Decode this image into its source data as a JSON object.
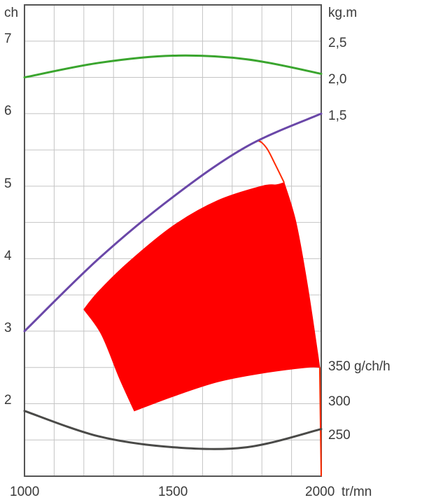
{
  "chart_data": {
    "type": "line",
    "x_unit": "tr/mn",
    "x": [
      1000,
      1250,
      1500,
      1750,
      2000
    ],
    "xlim": [
      1000,
      2000
    ],
    "x_ticks": [
      "1000",
      "1500",
      "2000"
    ],
    "left_axis": {
      "unit": "ch",
      "ylim": [
        1,
        7.5
      ],
      "ticks": [
        "2",
        "3",
        "4",
        "5",
        "6",
        "7"
      ]
    },
    "right_axis_torque": {
      "unit": "kg.m",
      "ticks": [
        "1,5",
        "2,0",
        "2,5"
      ]
    },
    "right_axis_consumption": {
      "ticks": [
        "250",
        "300",
        "350 g/ch/h"
      ]
    },
    "grid": true,
    "legend": "none",
    "series": [
      {
        "color": "#3aa52e",
        "values": [
          6.5,
          6.7,
          6.8,
          6.75,
          6.55
        ]
      },
      {
        "color": "#6a47a8",
        "values": [
          3.0,
          4.0,
          4.85,
          5.55,
          6.0
        ]
      },
      {
        "color": "#4a4a48",
        "values": [
          1.9,
          1.55,
          1.4,
          1.4,
          1.65
        ]
      }
    ],
    "fill_region": {
      "color": "#ff0000",
      "upper_x": [
        1200,
        1250,
        1350,
        1500,
        1650,
        1800,
        1850,
        1875
      ],
      "upper_y": [
        3.3,
        3.55,
        3.95,
        4.45,
        4.8,
        5.0,
        5.02,
        5.05
      ],
      "lower_x": [
        1370,
        1500,
        1650,
        1800,
        1950,
        1995
      ],
      "lower_y": [
        1.9,
        2.1,
        2.3,
        2.42,
        2.5,
        2.5
      ],
      "right_x": [
        1875,
        1915,
        1955,
        1995
      ],
      "right_y": [
        5.05,
        4.5,
        3.6,
        2.5
      ],
      "left_x": [
        1200,
        1260,
        1320,
        1370
      ],
      "left_y": [
        3.3,
        2.95,
        2.35,
        1.9
      ]
    },
    "red_edge": {
      "color": "#ff2a00",
      "x": [
        1785,
        1800,
        1820,
        1845,
        1875
      ],
      "y": [
        5.63,
        5.6,
        5.5,
        5.3,
        5.05
      ]
    },
    "red_drop": {
      "color": "#ff2a00",
      "x": [
        1995,
        2000
      ],
      "y": [
        2.5,
        1.0
      ]
    }
  }
}
